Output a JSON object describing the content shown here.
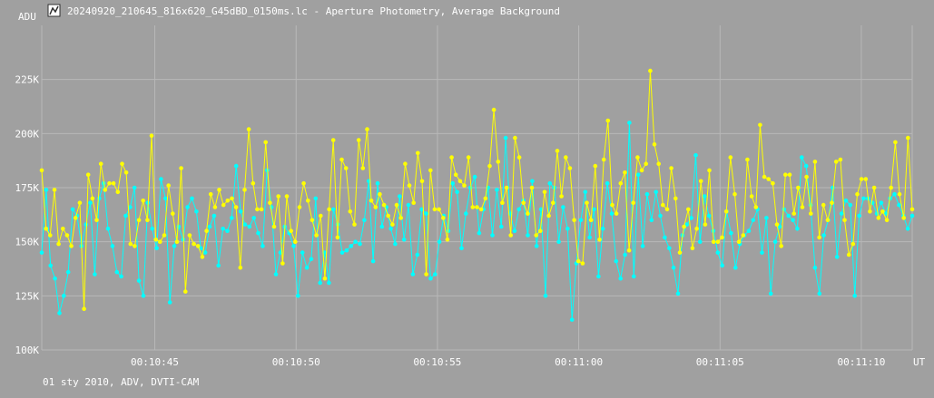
{
  "title": "20240920_210645_816x620_G45dBD_0150ms.lc - Aperture Photometry, Average Background",
  "footer": "01 sty 2010, ADV, DVTI-CAM",
  "colors": {
    "background": "#a0a0a0",
    "grid": "#b8b8b8",
    "text": "#ffffff",
    "series_yellow": "#ffff00",
    "series_cyan": "#00ffff"
  },
  "icon": "chart-app-icon",
  "chart_data": {
    "type": "line",
    "ylabel": "ADU",
    "xlabel": "UT",
    "ylim": [
      100000,
      250000
    ],
    "y_ticks": [
      100000,
      125000,
      150000,
      175000,
      200000,
      225000
    ],
    "y_tick_labels": [
      "100K",
      "125K",
      "150K",
      "175K",
      "200K",
      "225K"
    ],
    "x_range_seconds": [
      41.0,
      71.8
    ],
    "x_ticks": [
      45,
      50,
      55,
      60,
      65,
      70
    ],
    "x_tick_labels": [
      "00:10:45",
      "00:10:50",
      "00:10:55",
      "00:11:00",
      "00:11:05",
      "00:11:10"
    ],
    "grid": true,
    "markers": true,
    "series": [
      {
        "color": "#ffff00",
        "values": [
          183000,
          156000,
          153000,
          174000,
          149000,
          156000,
          153000,
          148000,
          161000,
          168000,
          119000,
          181000,
          170000,
          160000,
          186000,
          174000,
          177000,
          177000,
          173000,
          186000,
          182000,
          149000,
          148000,
          160000,
          169000,
          160000,
          199000,
          151000,
          150000,
          153000,
          176000,
          163000,
          150000,
          184000,
          127000,
          153000,
          149000,
          148000,
          143000,
          155000,
          172000,
          166000,
          174000,
          167000,
          169000,
          170000,
          166000,
          138000,
          174000,
          202000,
          177000,
          165000,
          165000,
          196000,
          168000,
          157000,
          171000,
          140000,
          171000,
          155000,
          150000,
          166000,
          177000,
          169000,
          160000,
          153000,
          162000,
          133000,
          165000,
          197000,
          152000,
          188000,
          184000,
          164000,
          158000,
          197000,
          184000,
          202000,
          169000,
          166000,
          172000,
          167000,
          162000,
          158000,
          167000,
          161000,
          186000,
          176000,
          168000,
          191000,
          178000,
          135000,
          183000,
          165000,
          165000,
          161000,
          151000,
          189000,
          181000,
          178000,
          176000,
          189000,
          166000,
          166000,
          165000,
          170000,
          185000,
          211000,
          187000,
          168000,
          175000,
          153000,
          198000,
          189000,
          168000,
          163000,
          175000,
          153000,
          155000,
          173000,
          162000,
          168000,
          192000,
          171000,
          189000,
          184000,
          160000,
          141000,
          140000,
          168000,
          160000,
          185000,
          151000,
          188000,
          206000,
          167000,
          163000,
          177000,
          182000,
          146000,
          168000,
          189000,
          183000,
          186000,
          229000,
          195000,
          186000,
          167000,
          165000,
          184000,
          170000,
          145000,
          157000,
          165000,
          147000,
          156000,
          178000,
          158000,
          183000,
          150000,
          150000,
          152000,
          164000,
          189000,
          172000,
          150000,
          153000,
          188000,
          171000,
          166000,
          204000,
          180000,
          179000,
          177000,
          158000,
          148000,
          181000,
          181000,
          163000,
          175000,
          166000,
          180000,
          163000,
          187000,
          152000,
          167000,
          160000,
          168000,
          187000,
          188000,
          160000,
          144000,
          149000,
          172000,
          179000,
          179000,
          164000,
          175000,
          161000,
          164000,
          160000,
          175000,
          196000,
          172000,
          161000,
          198000,
          165000
        ]
      },
      {
        "color": "#00ffff",
        "values": [
          145000,
          174000,
          139000,
          133000,
          117000,
          125000,
          136000,
          165000,
          162000,
          148000,
          158000,
          168000,
          135000,
          170000,
          177000,
          156000,
          148000,
          136000,
          134000,
          162000,
          166000,
          175000,
          132000,
          125000,
          168000,
          156000,
          147000,
          179000,
          170000,
          122000,
          148000,
          157000,
          151000,
          166000,
          170000,
          164000,
          147000,
          145000,
          157000,
          162000,
          139000,
          156000,
          155000,
          161000,
          185000,
          164000,
          158000,
          157000,
          161000,
          154000,
          148000,
          183000,
          166000,
          135000,
          145000,
          157000,
          154000,
          148000,
          125000,
          145000,
          138000,
          142000,
          170000,
          131000,
          145000,
          131000,
          165000,
          158000,
          145000,
          146000,
          148000,
          150000,
          149000,
          160000,
          178000,
          141000,
          177000,
          157000,
          166000,
          156000,
          149000,
          171000,
          151000,
          167000,
          135000,
          144000,
          165000,
          163000,
          133000,
          135000,
          150000,
          162000,
          155000,
          177000,
          173000,
          147000,
          163000,
          175000,
          180000,
          154000,
          165000,
          175000,
          153000,
          174000,
          157000,
          198000,
          163000,
          155000,
          165000,
          169000,
          153000,
          178000,
          148000,
          165000,
          125000,
          177000,
          175000,
          150000,
          166000,
          156000,
          114000,
          140000,
          160000,
          173000,
          152000,
          165000,
          134000,
          156000,
          177000,
          163000,
          141000,
          133000,
          144000,
          205000,
          134000,
          181000,
          148000,
          172000,
          160000,
          173000,
          162000,
          152000,
          147000,
          138000,
          126000,
          153000,
          158000,
          161000,
          190000,
          150000,
          171000,
          162000,
          155000,
          145000,
          139000,
          164000,
          154000,
          138000,
          149000,
          153000,
          155000,
          160000,
          165000,
          145000,
          161000,
          126000,
          150000,
          157000,
          165000,
          162000,
          160000,
          156000,
          189000,
          185000,
          167000,
          138000,
          126000,
          153000,
          160000,
          175000,
          143000,
          163000,
          169000,
          167000,
          125000,
          162000,
          170000,
          170000,
          168000,
          163000,
          168000,
          163000,
          170000,
          172000,
          167000,
          162000,
          156000,
          162000
        ]
      }
    ]
  }
}
